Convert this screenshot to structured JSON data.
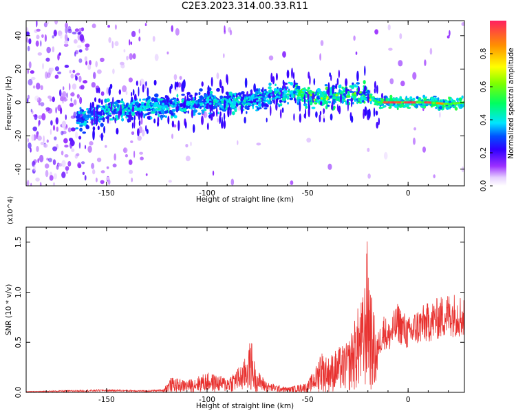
{
  "figure": {
    "title": "C2E3.2023.314.00.33.R11"
  },
  "colors": {
    "snr_line": "#e8312f",
    "axis": "#000000",
    "colormap": [
      "#ffffff",
      "#e6d0ff",
      "#b05cff",
      "#6a00ff",
      "#2a10ff",
      "#0050ff",
      "#00e5ff",
      "#00ff60",
      "#ffff00",
      "#ff9000",
      "#ff2060"
    ]
  },
  "chart_data": [
    {
      "type": "heatmap",
      "xlabel": "Height of straight line (km)",
      "ylabel": "Frequency (Hz)",
      "xlim": [
        -190,
        28
      ],
      "ylim": [
        -50,
        49
      ],
      "xticks": [
        -150,
        -100,
        -50,
        0
      ],
      "yticks": [
        -40,
        -20,
        0,
        20,
        40
      ],
      "xtick_labels": [
        "-150",
        "-100",
        "-50",
        "0"
      ],
      "ytick_labels": [
        "-40",
        "-20",
        "0",
        "20",
        "40"
      ],
      "description_points": {
        "ridge_x": [
          -160,
          -150,
          -140,
          -120,
          -100,
          -80,
          -60,
          -45,
          -30,
          -20,
          -15,
          0,
          10,
          20,
          28
        ],
        "ridge_y": [
          -10,
          -5,
          -4,
          -2,
          0,
          1,
          5,
          3,
          5,
          4,
          0,
          0,
          0,
          -1,
          0
        ],
        "peak_amplitude_x": [
          -10,
          10
        ],
        "peak_amplitude": 0.9
      },
      "colorbar": {
        "label": "Normalized spectral amplitude",
        "range": [
          0.0,
          1.0
        ],
        "ticks": [
          0.0,
          0.2,
          0.4,
          0.6,
          0.8
        ],
        "tick_labels": [
          "0.0",
          "0.2",
          "0.4",
          "0.6",
          "0.8"
        ]
      }
    },
    {
      "type": "line",
      "xlabel": "Height of straight line (km)",
      "ylabel": "SNR (10 * v/v)",
      "scale_label": "(x10^4)",
      "xlim": [
        -190,
        28
      ],
      "ylim": [
        0,
        1.65
      ],
      "xticks": [
        -150,
        -100,
        -50,
        0
      ],
      "yticks": [
        0.0,
        0.5,
        1.0,
        1.5
      ],
      "xtick_labels": [
        "-150",
        "-100",
        "-50",
        "0"
      ],
      "ytick_labels": [
        "0.0",
        "0.5",
        "1.0",
        "1.5"
      ],
      "series": [
        {
          "x": [
            -190,
            -170,
            -150,
            -130,
            -122,
            -118,
            -110,
            -100,
            -90,
            -82,
            -78,
            -76,
            -70,
            -60,
            -50,
            -45,
            -44,
            -40,
            -35,
            -30,
            -25,
            -22,
            -20,
            -19,
            -17,
            -15,
            -12,
            -10,
            -5,
            0,
            5,
            10,
            15,
            20,
            25,
            28
          ],
          "y": [
            0.01,
            0.02,
            0.03,
            0.02,
            0.03,
            0.15,
            0.12,
            0.2,
            0.15,
            0.3,
            0.55,
            0.25,
            0.1,
            0.05,
            0.1,
            0.3,
            0.45,
            0.35,
            0.45,
            0.5,
            0.85,
            1.0,
            1.65,
            1.1,
            0.8,
            0.6,
            0.8,
            0.7,
            0.9,
            0.75,
            0.85,
            0.9,
            0.95,
            1.0,
            1.0,
            0.95
          ]
        }
      ]
    }
  ]
}
